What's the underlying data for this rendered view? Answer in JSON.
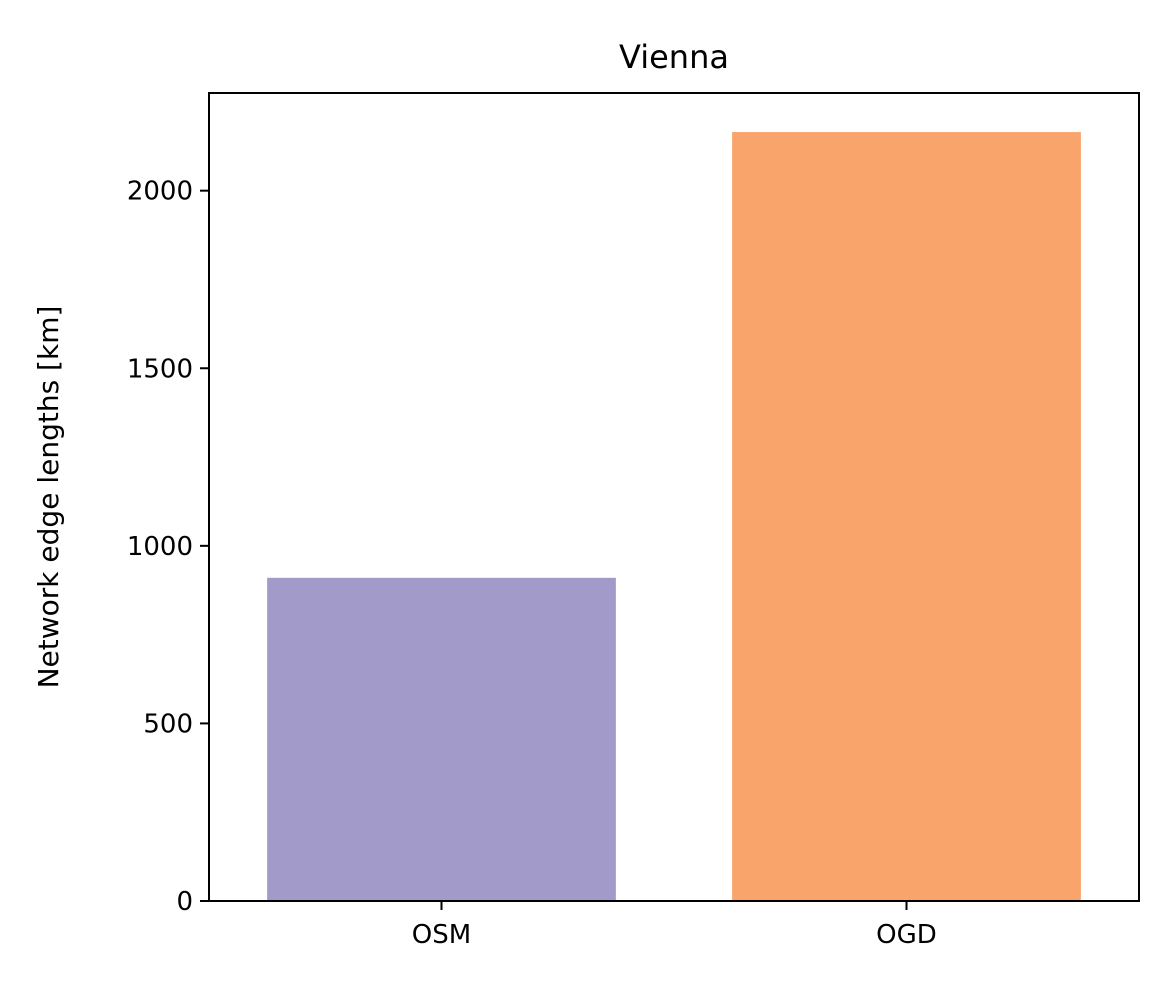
{
  "chart_data": {
    "type": "bar",
    "title": "Vienna",
    "xlabel": "",
    "ylabel": "Network edge lengths [km]",
    "categories": [
      "OSM",
      "OGD"
    ],
    "values": [
      910,
      2165
    ],
    "colors": [
      "#a29bca",
      "#f8a46a"
    ],
    "ylim": [
      0,
      2275
    ],
    "yticks": [
      0,
      500,
      1000,
      1500,
      2000
    ],
    "grid": false,
    "legend": "none"
  }
}
